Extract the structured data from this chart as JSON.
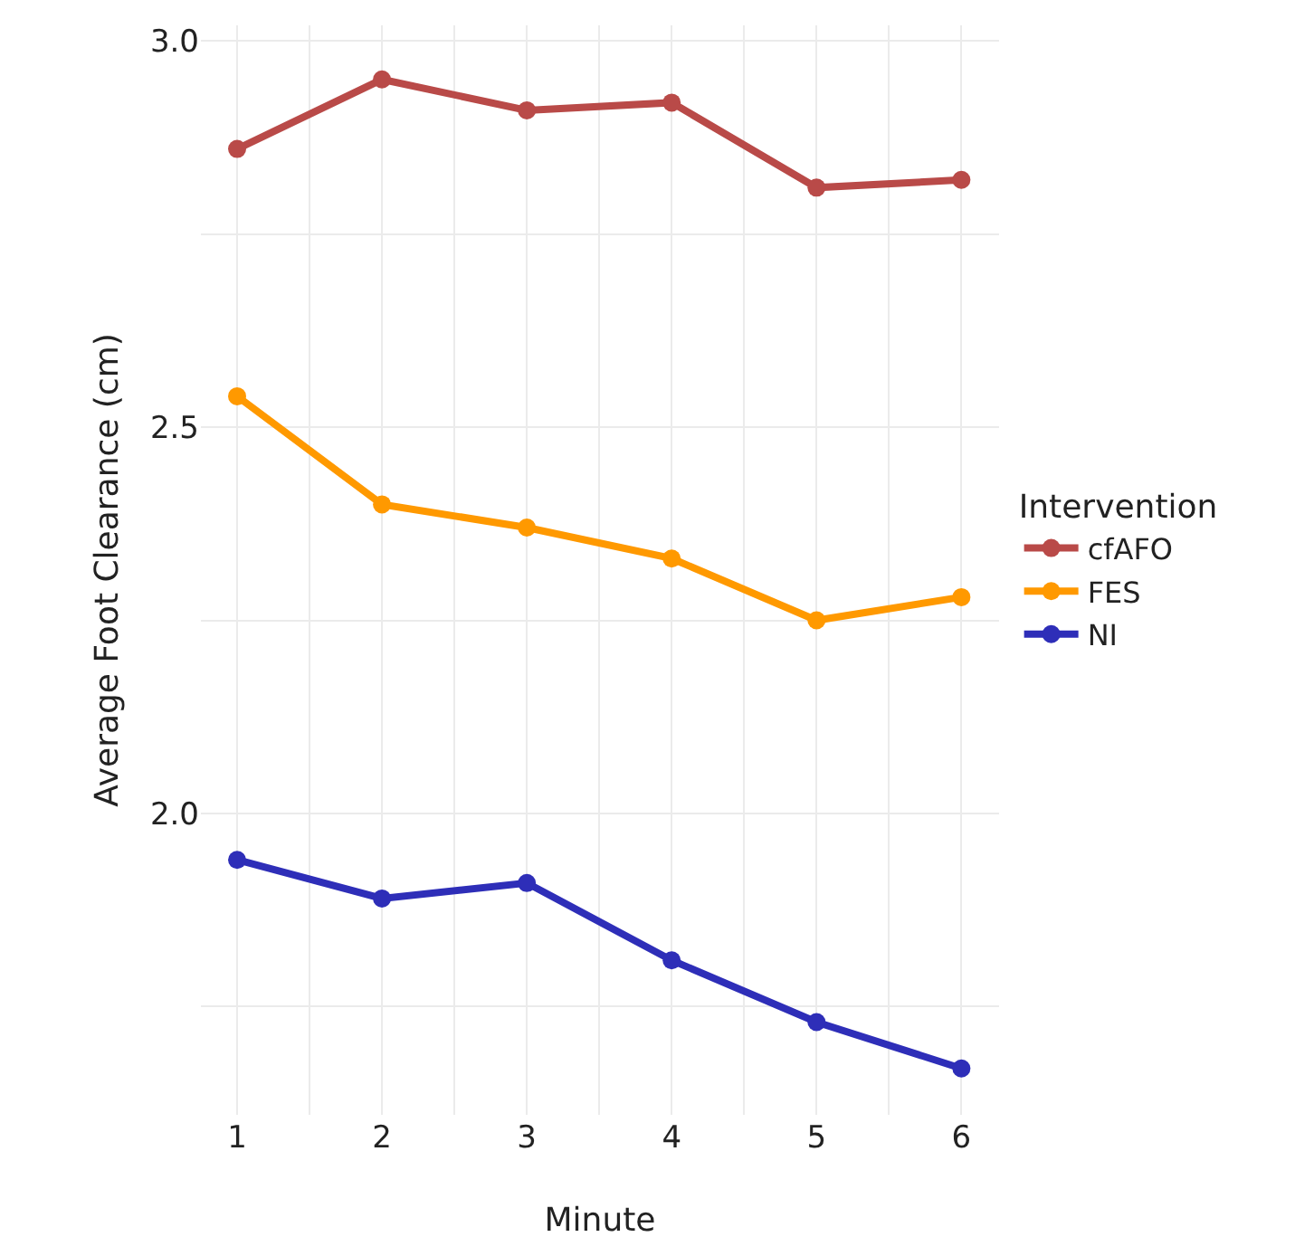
{
  "chart_data": {
    "type": "line",
    "xlabel": "Minute",
    "ylabel": "Average Foot Clearance (cm)",
    "legend_title": "Intervention",
    "x": [
      1,
      2,
      3,
      4,
      5,
      6
    ],
    "series": [
      {
        "name": "cfAFO",
        "color": "#b94a48",
        "values": [
          2.86,
          2.95,
          2.91,
          2.92,
          2.81,
          2.82
        ]
      },
      {
        "name": "FES",
        "color": "#ff9900",
        "values": [
          2.54,
          2.4,
          2.37,
          2.33,
          2.25,
          2.28
        ]
      },
      {
        "name": "NI",
        "color": "#2e2eb8",
        "values": [
          1.94,
          1.89,
          1.91,
          1.81,
          1.73,
          1.67
        ]
      }
    ],
    "xlim": [
      0.75,
      6.26
    ],
    "xticks": [
      1,
      {
        "value": 1.5,
        "label": null
      },
      2,
      {
        "value": 2.5,
        "label": null
      },
      3,
      {
        "value": 3.5,
        "label": null
      },
      4,
      {
        "value": 4.5,
        "label": null
      },
      5,
      {
        "value": 5.5,
        "label": null
      },
      6
    ],
    "ylim": [
      1.61,
      3.02
    ],
    "yticks": [
      {
        "value": 1.75,
        "label": null
      },
      {
        "value": 2.0,
        "label": "2.0"
      },
      {
        "value": 2.25,
        "label": null
      },
      {
        "value": 2.5,
        "label": "2.5"
      },
      {
        "value": 2.75,
        "label": null
      },
      {
        "value": 3.0,
        "label": "3.0"
      }
    ],
    "grid": true,
    "legend": "right",
    "marker": "circle",
    "line_style": "solid"
  }
}
